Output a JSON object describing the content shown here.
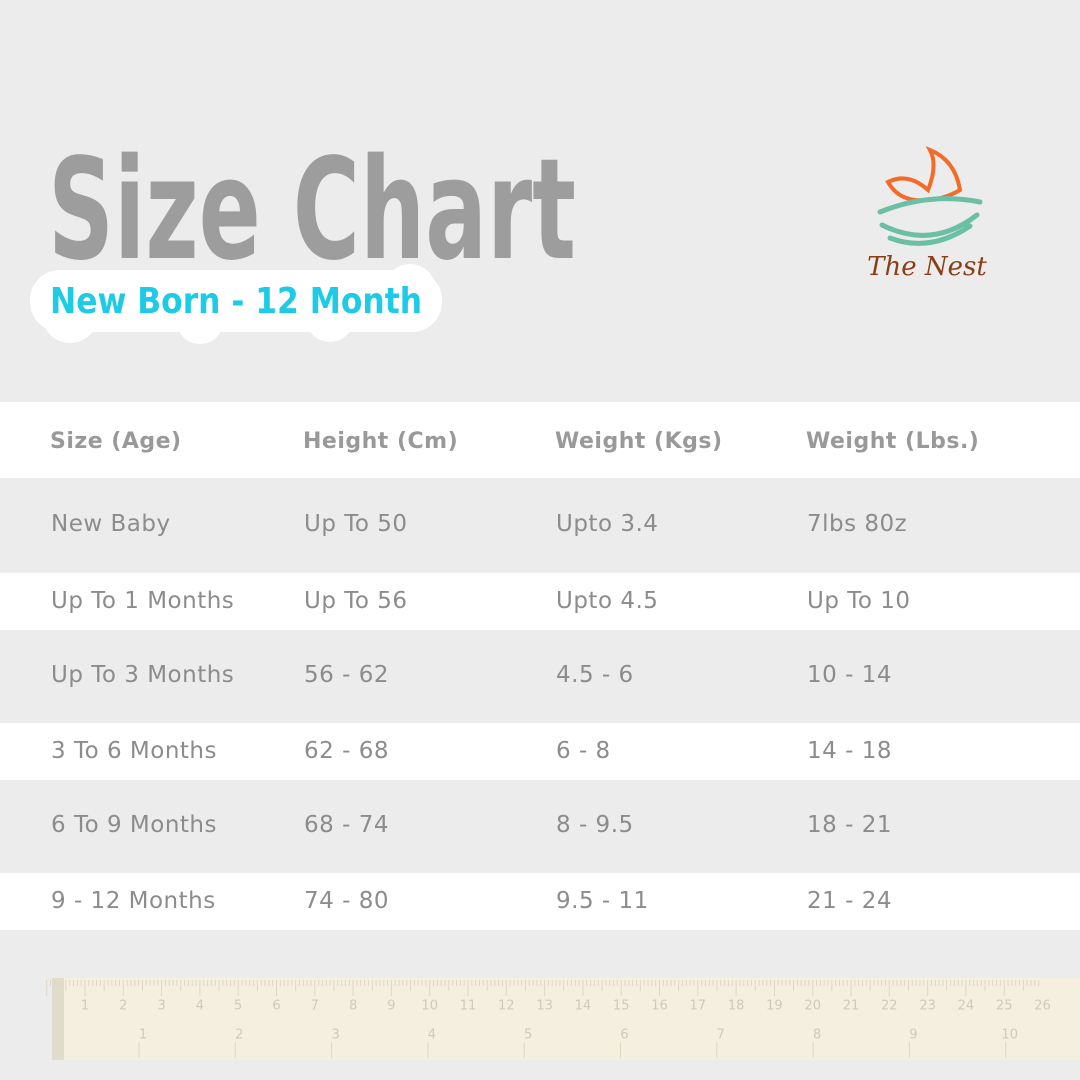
{
  "header": {
    "title": "Size Chart",
    "subtitle": "New Born - 12 Month",
    "brand": "The Nest"
  },
  "table": {
    "columns": [
      "Size (Age)",
      "Height (Cm)",
      "Weight (Kgs)",
      "Weight (Lbs.)"
    ],
    "rows": [
      [
        "New Baby",
        "Up To 50",
        "Upto 3.4",
        "7lbs 80z"
      ],
      [
        "Up To 1 Months",
        "Up To 56",
        "Upto 4.5",
        "Up To 10"
      ],
      [
        "Up To 3 Months",
        "56 - 62",
        "4.5 - 6",
        "10 - 14"
      ],
      [
        "3 To 6 Months",
        "62 - 68",
        "6 - 8",
        "14 - 18"
      ],
      [
        "6 To 9 Months",
        "68 - 74",
        "8 - 9.5",
        "18 - 21"
      ],
      [
        "9 - 12 Months",
        "74 - 80",
        "9.5 - 11",
        "21 - 24"
      ]
    ]
  },
  "ruler": {
    "cm_labels": [
      "1",
      "2",
      "3",
      "4",
      "5",
      "6",
      "7",
      "8",
      "9",
      "10",
      "11",
      "12",
      "13",
      "14",
      "15",
      "16",
      "17",
      "18",
      "19",
      "20",
      "21",
      "22",
      "23",
      "24",
      "25",
      "26"
    ],
    "inch_labels": [
      "1",
      "2",
      "3",
      "4",
      "5",
      "6",
      "7",
      "8",
      "9",
      "10"
    ]
  }
}
